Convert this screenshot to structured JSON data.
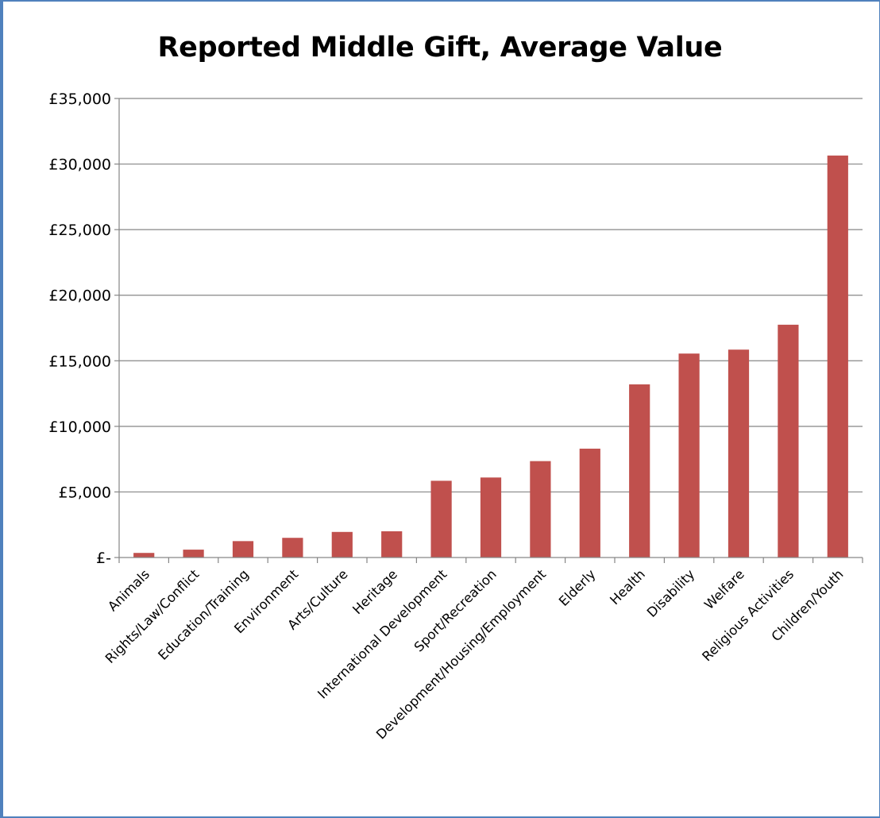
{
  "chart_data": {
    "type": "bar",
    "title": "Reported Middle Gift, Average Value",
    "xlabel": "",
    "ylabel": "",
    "ylim": [
      0,
      35000
    ],
    "yticks": [
      {
        "value": 0,
        "label": "£-"
      },
      {
        "value": 5000,
        "label": "£5,000"
      },
      {
        "value": 10000,
        "label": "£10,000"
      },
      {
        "value": 15000,
        "label": "£15,000"
      },
      {
        "value": 20000,
        "label": "£20,000"
      },
      {
        "value": 25000,
        "label": "£25,000"
      },
      {
        "value": 30000,
        "label": "£30,000"
      },
      {
        "value": 35000,
        "label": "£35,000"
      }
    ],
    "grid": true,
    "legend": "none",
    "bar_color": "#c0504d",
    "categories": [
      "Animals",
      "Rights/Law/Conflict",
      "Education/Training",
      "Environment",
      "Arts/Culture",
      "Heritage",
      "International Development",
      "Sport/Recreation",
      "Development/Housing/Employment",
      "Elderly",
      "Health",
      "Disability",
      "Welfare",
      "Religious Activities",
      "Children/Youth"
    ],
    "values": [
      350,
      600,
      1250,
      1500,
      1950,
      2000,
      5850,
      6100,
      7350,
      8300,
      13200,
      15550,
      15850,
      17750,
      30650
    ]
  }
}
